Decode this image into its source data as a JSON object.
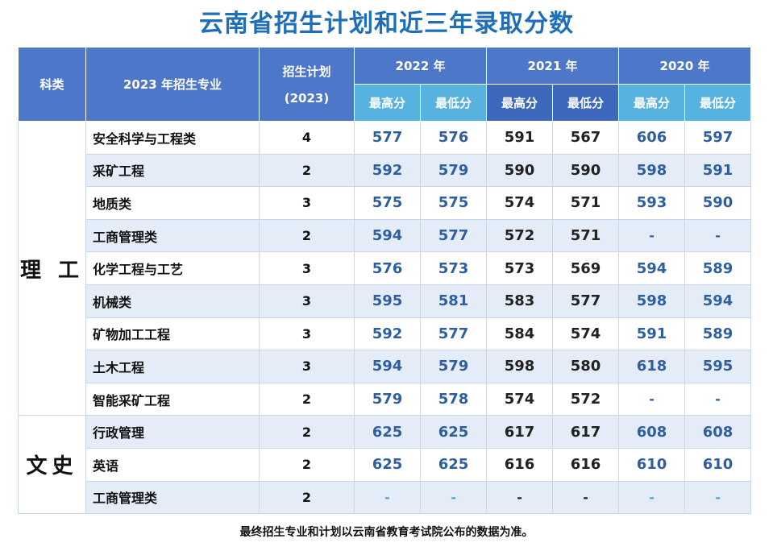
{
  "title": "云南省招生计划和近三年录取分数",
  "headers": {
    "category": "科类",
    "major": "2023 年招生专业",
    "plan_line1": "招生计划",
    "plan_line2": "(2023)",
    "years": [
      "2022 年",
      "2021 年",
      "2020 年"
    ],
    "max": "最高分",
    "min": "最低分"
  },
  "categories": {
    "science": "理 工",
    "arts": "文史"
  },
  "rows": [
    {
      "major": "安全科学与工程类",
      "plan": "4",
      "y2022": [
        "577",
        "576"
      ],
      "y2021": [
        "591",
        "567"
      ],
      "y2020": [
        "606",
        "597"
      ]
    },
    {
      "major": "采矿工程",
      "plan": "2",
      "y2022": [
        "592",
        "579"
      ],
      "y2021": [
        "590",
        "590"
      ],
      "y2020": [
        "598",
        "591"
      ]
    },
    {
      "major": "地质类",
      "plan": "3",
      "y2022": [
        "575",
        "575"
      ],
      "y2021": [
        "574",
        "571"
      ],
      "y2020": [
        "593",
        "590"
      ]
    },
    {
      "major": "工商管理类",
      "plan": "2",
      "y2022": [
        "594",
        "577"
      ],
      "y2021": [
        "572",
        "571"
      ],
      "y2020": [
        "-",
        "-"
      ]
    },
    {
      "major": "化学工程与工艺",
      "plan": "3",
      "y2022": [
        "576",
        "573"
      ],
      "y2021": [
        "573",
        "569"
      ],
      "y2020": [
        "594",
        "589"
      ]
    },
    {
      "major": "机械类",
      "plan": "3",
      "y2022": [
        "595",
        "581"
      ],
      "y2021": [
        "583",
        "577"
      ],
      "y2020": [
        "598",
        "594"
      ]
    },
    {
      "major": "矿物加工工程",
      "plan": "3",
      "y2022": [
        "592",
        "577"
      ],
      "y2021": [
        "584",
        "574"
      ],
      "y2020": [
        "591",
        "589"
      ]
    },
    {
      "major": "土木工程",
      "plan": "3",
      "y2022": [
        "594",
        "579"
      ],
      "y2021": [
        "598",
        "580"
      ],
      "y2020": [
        "618",
        "595"
      ]
    },
    {
      "major": "智能采矿工程",
      "plan": "2",
      "y2022": [
        "579",
        "578"
      ],
      "y2021": [
        "574",
        "572"
      ],
      "y2020": [
        "-",
        "-"
      ]
    },
    {
      "major": "行政管理",
      "plan": "2",
      "y2022": [
        "625",
        "625"
      ],
      "y2021": [
        "617",
        "617"
      ],
      "y2020": [
        "608",
        "608"
      ]
    },
    {
      "major": "英语",
      "plan": "2",
      "y2022": [
        "625",
        "625"
      ],
      "y2021": [
        "616",
        "616"
      ],
      "y2020": [
        "610",
        "610"
      ]
    },
    {
      "major": "工商管理类",
      "plan": "2",
      "y2022": [
        "-",
        "-"
      ],
      "y2021": [
        "-",
        "-"
      ],
      "y2020": [
        "-",
        "-"
      ]
    }
  ],
  "footer": "最终招生专业和计划以云南省教育考试院公布的数据为准。",
  "colors": {
    "title": "#1f6fb8",
    "header_dark": "#4d77c9",
    "header_light": "#58b2e0",
    "row_shade": "#e4ecf7",
    "value_blue": "#2f5f9e"
  }
}
